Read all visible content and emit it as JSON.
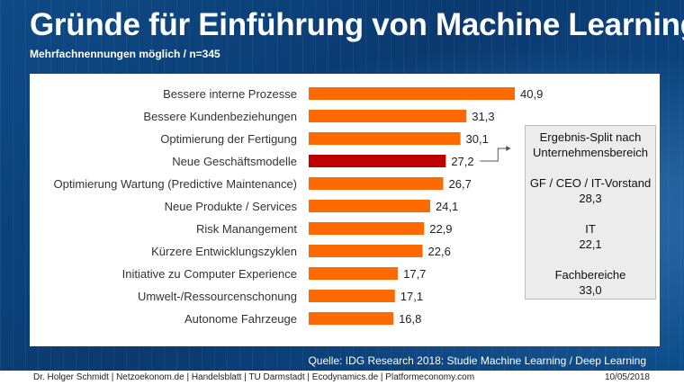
{
  "title": "Gründe für Einführung von Machine Learning",
  "subtitle": "Mehrfachnennungen möglich / n=345",
  "colors": {
    "bar": "#ff6a00",
    "highlight_bar": "#c00000",
    "title": "#ffffff",
    "background": "#0b3f78"
  },
  "chart_data": {
    "type": "bar",
    "orientation": "horizontal",
    "categories": [
      "Bessere interne Prozesse",
      "Bessere Kundenbeziehungen",
      "Optimierung der Fertigung",
      "Neue Geschäftsmodelle",
      "Optimierung Wartung (Predictive Maintenance)",
      "Neue Produkte / Services",
      "Risk Manangement",
      "Kürzere Entwicklungszyklen",
      "Initiative zu Computer Experience",
      "Umwelt-/Ressourcenschonung",
      "Autonome Fahrzeuge"
    ],
    "values": [
      40.9,
      31.3,
      30.1,
      27.2,
      26.7,
      24.1,
      22.9,
      22.6,
      17.7,
      17.1,
      16.8
    ],
    "value_labels": [
      "40,9",
      "31,3",
      "30,1",
      "27,2",
      "26,7",
      "24,1",
      "22,9",
      "22,6",
      "17,7",
      "17,1",
      "16,8"
    ],
    "highlight_index": 3,
    "xlim": [
      0,
      50
    ],
    "grid": false,
    "legend": "none"
  },
  "callout": {
    "heading_line1": "Ergebnis-Split nach",
    "heading_line2": "Unternehmensbereich",
    "groups": [
      {
        "label": "GF / CEO / IT-Vorstand",
        "value": "28,3"
      },
      {
        "label": "IT",
        "value": "22,1"
      },
      {
        "label": "Fachbereiche",
        "value": "33,0"
      }
    ]
  },
  "source": "Quelle: IDG Research 2018: Studie Machine Learning / Deep Learning",
  "footer": {
    "credits": "Dr. Holger Schmidt  |  Netzoekonom.de  |  Handelsblatt  |  TU Darmstadt | Ecodynamics.de  |  Platformeconomy.com",
    "date": "10/05/2018"
  }
}
